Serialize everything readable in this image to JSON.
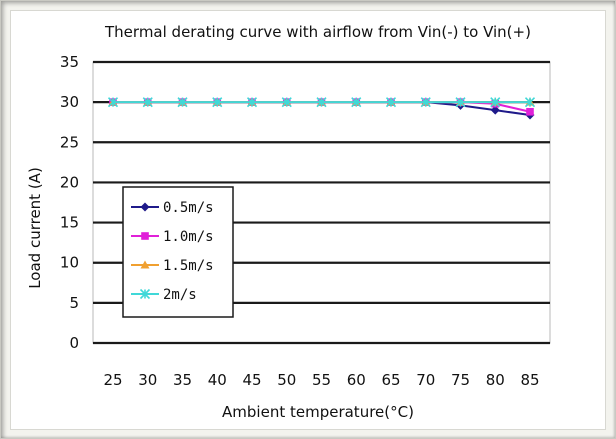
{
  "chart_data": {
    "type": "line",
    "title": "Thermal derating curve with airflow from Vin(-) to Vin(+)",
    "xlabel": "Ambient temperature(°C)",
    "ylabel": "Load current (A)",
    "x": [
      25,
      30,
      35,
      40,
      45,
      50,
      55,
      60,
      65,
      70,
      75,
      80,
      85
    ],
    "xlim": [
      25,
      85
    ],
    "ylim": [
      0,
      35
    ],
    "yticks": [
      0,
      5,
      10,
      15,
      20,
      25,
      30,
      35
    ],
    "grid": "horizontal",
    "legend_position": "left",
    "series": [
      {
        "name": "0.5m/s",
        "color": "#1f1a8a",
        "marker": "diamond",
        "values": [
          30,
          30,
          30,
          30,
          30,
          30,
          30,
          30,
          30,
          30,
          29.6,
          29,
          28.4
        ]
      },
      {
        "name": "1.0m/s",
        "color": "#e020d8",
        "marker": "square",
        "values": [
          30,
          30,
          30,
          30,
          30,
          30,
          30,
          30,
          30,
          30,
          30,
          29.8,
          28.8
        ]
      },
      {
        "name": "1.5m/s",
        "color": "#f0a030",
        "marker": "triangle",
        "values": [
          30,
          30,
          30,
          30,
          30,
          30,
          30,
          30,
          30,
          30,
          30,
          30,
          30
        ]
      },
      {
        "name": "2m/s",
        "color": "#40d8d8",
        "marker": "cross",
        "values": [
          30,
          30,
          30,
          30,
          30,
          30,
          30,
          30,
          30,
          30,
          30,
          30,
          30
        ]
      }
    ]
  }
}
